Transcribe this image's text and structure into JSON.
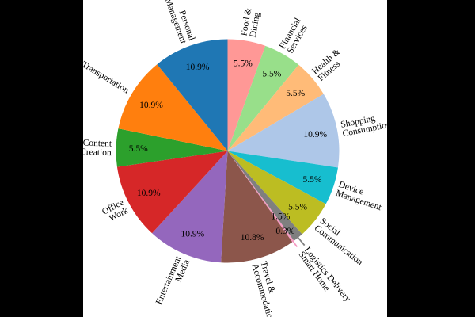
{
  "figure": {
    "background": "#000000",
    "panel_background": "#ffffff"
  },
  "chart_data": {
    "type": "pie",
    "title": "",
    "direction": "clockwise",
    "start_at": "top",
    "label_color": "#000000",
    "labels_rotated_radially": true,
    "slices": [
      {
        "label": "Food & Dining",
        "label_lines": [
          "Food &",
          "Dining"
        ],
        "value": 5.5,
        "pct_label": "5.5%",
        "color": "#ff9896"
      },
      {
        "label": "Financial Services",
        "label_lines": [
          "Financial",
          "Services"
        ],
        "value": 5.5,
        "pct_label": "5.5%",
        "color": "#98df8a"
      },
      {
        "label": "Health & Fitness",
        "label_lines": [
          "Health &",
          "Fitness"
        ],
        "value": 5.5,
        "pct_label": "5.5%",
        "color": "#ffbb78"
      },
      {
        "label": "Shopping Consumption",
        "label_lines": [
          "Shopping",
          "Consumption"
        ],
        "value": 10.9,
        "pct_label": "10.9%",
        "color": "#aec7e8"
      },
      {
        "label": "Device Management",
        "label_lines": [
          "Device",
          "Management"
        ],
        "value": 5.5,
        "pct_label": "5.5%",
        "color": "#17becf"
      },
      {
        "label": "Social Communication",
        "label_lines": [
          "Social",
          "Communication"
        ],
        "value": 5.5,
        "pct_label": "5.5%",
        "color": "#bcbd22"
      },
      {
        "label": "Logistics Delivery",
        "label_lines": [
          "Logistics Delivery"
        ],
        "value": 1.5,
        "pct_label": "1.5%",
        "color": "#7f7f7f",
        "pct_d": 0.75,
        "label_d": 1.12,
        "leader": {
          "from": 1.0,
          "to": 1.09
        }
      },
      {
        "label": "Smart Home",
        "label_lines": [
          "Smart Home"
        ],
        "value": 0.3,
        "pct_label": "0.3%",
        "color": "#f49ac2",
        "pct_d": 0.88,
        "label_d": 1.12,
        "leader": {
          "from": 0.67,
          "to": 1.06
        }
      },
      {
        "label": "Travel & Accommodation",
        "label_lines": [
          "Travel &",
          "Accommodation"
        ],
        "value": 10.8,
        "pct_label": "10.8%",
        "color": "#8c564b"
      },
      {
        "label": "Entertainment Media",
        "label_lines": [
          "Entertainment",
          "Media"
        ],
        "value": 10.9,
        "pct_label": "10.9%",
        "color": "#9467bd"
      },
      {
        "label": "Office Work",
        "label_lines": [
          "Office",
          "Work"
        ],
        "value": 10.9,
        "pct_label": "10.9%",
        "color": "#d62728"
      },
      {
        "label": "Content Creation",
        "label_lines": [
          "Content",
          "Creation"
        ],
        "value": 5.5,
        "pct_label": "5.5%",
        "color": "#2ca02c"
      },
      {
        "label": "Transportation",
        "label_lines": [
          "Transportation"
        ],
        "value": 10.9,
        "pct_label": "10.9%",
        "color": "#ff7f0e"
      },
      {
        "label": "Personal Management",
        "label_lines": [
          "Personal",
          "Management"
        ],
        "value": 10.9,
        "pct_label": "10.9%",
        "color": "#1f77b4"
      }
    ]
  }
}
